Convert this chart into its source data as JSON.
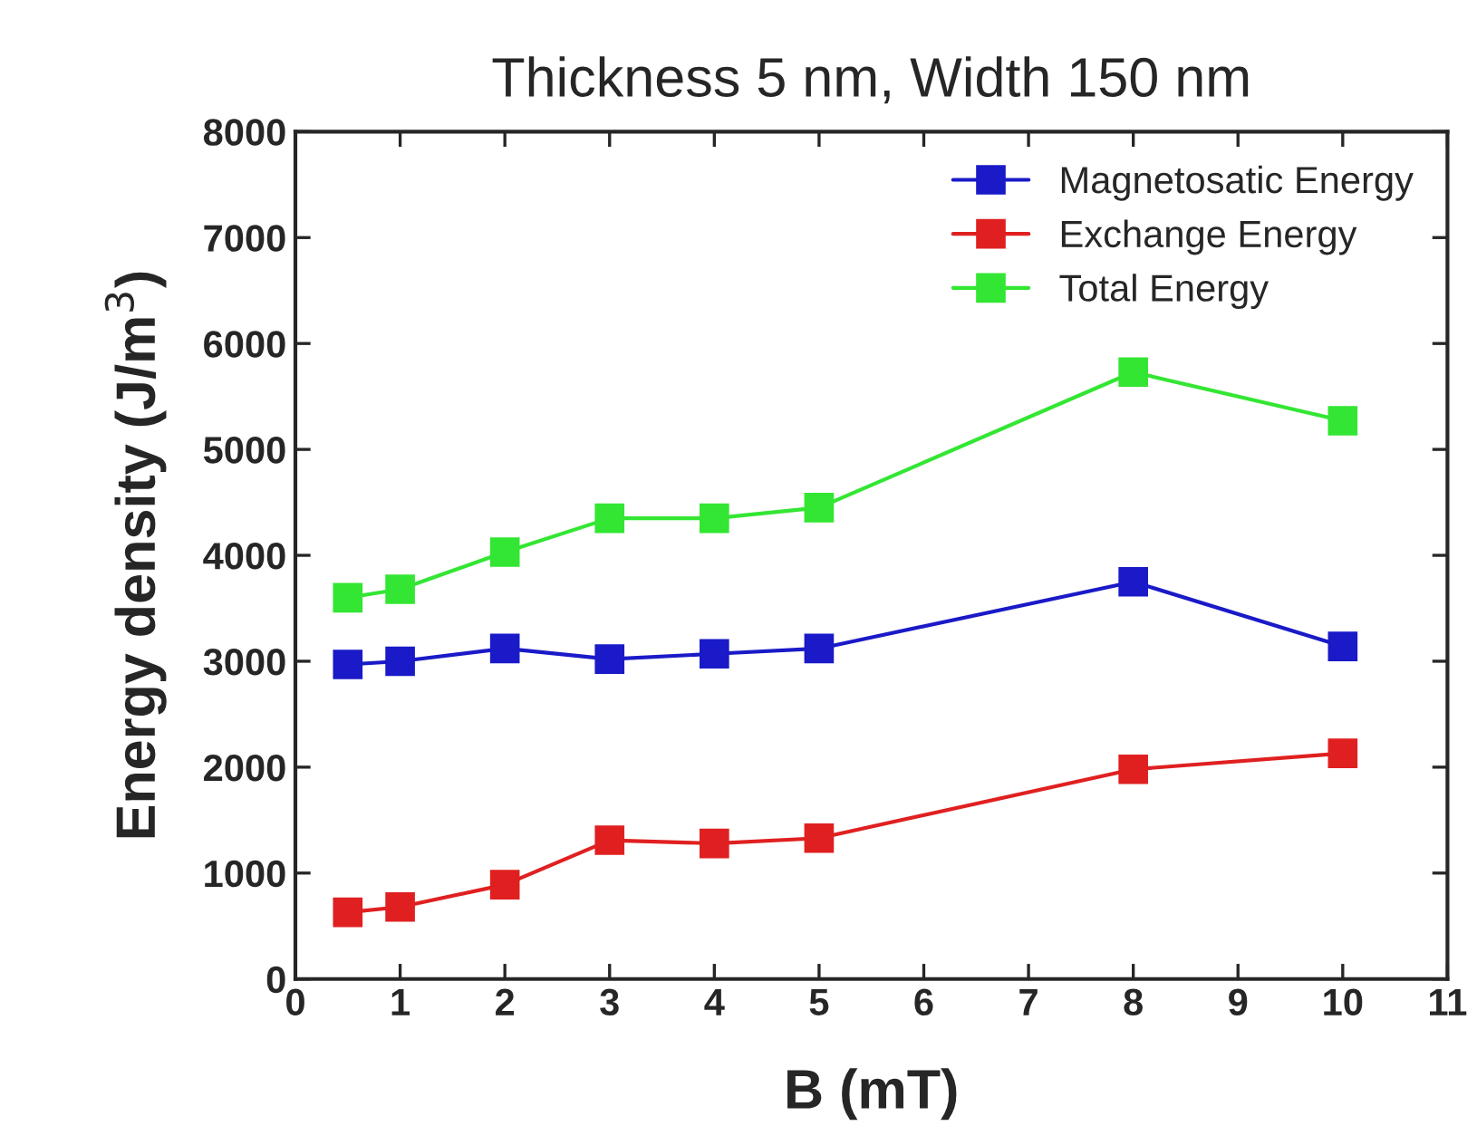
{
  "chart_data": {
    "type": "line",
    "title": "Thickness 5 nm, Width 150 nm",
    "xlabel": "B (mT)",
    "ylabel": "Energy density (J/m$^{3}$)",
    "x": [
      0.5,
      1,
      2,
      3,
      4,
      5,
      8,
      10
    ],
    "series": [
      {
        "name": "Magnetosatic Energy",
        "color": "#1a1ac8",
        "values": [
          2970,
          3000,
          3120,
          3020,
          3070,
          3120,
          3750,
          3140
        ]
      },
      {
        "name": "Exchange Energy",
        "color": "#e02020",
        "values": [
          630,
          680,
          890,
          1310,
          1280,
          1330,
          1980,
          2130
        ]
      },
      {
        "name": "Total Energy",
        "color": "#33e633",
        "values": [
          3600,
          3680,
          4030,
          4350,
          4350,
          4450,
          5730,
          5270
        ]
      }
    ],
    "xlim": [
      0,
      11
    ],
    "xticks": [
      0,
      1,
      2,
      3,
      4,
      5,
      6,
      7,
      8,
      9,
      10,
      11
    ],
    "ylim": [
      0,
      8000
    ],
    "yticks": [
      0,
      1000,
      2000,
      3000,
      4000,
      5000,
      6000,
      7000,
      8000
    ],
    "marker": "square",
    "line_style": "solid",
    "legend": "top right",
    "grid": false
  }
}
